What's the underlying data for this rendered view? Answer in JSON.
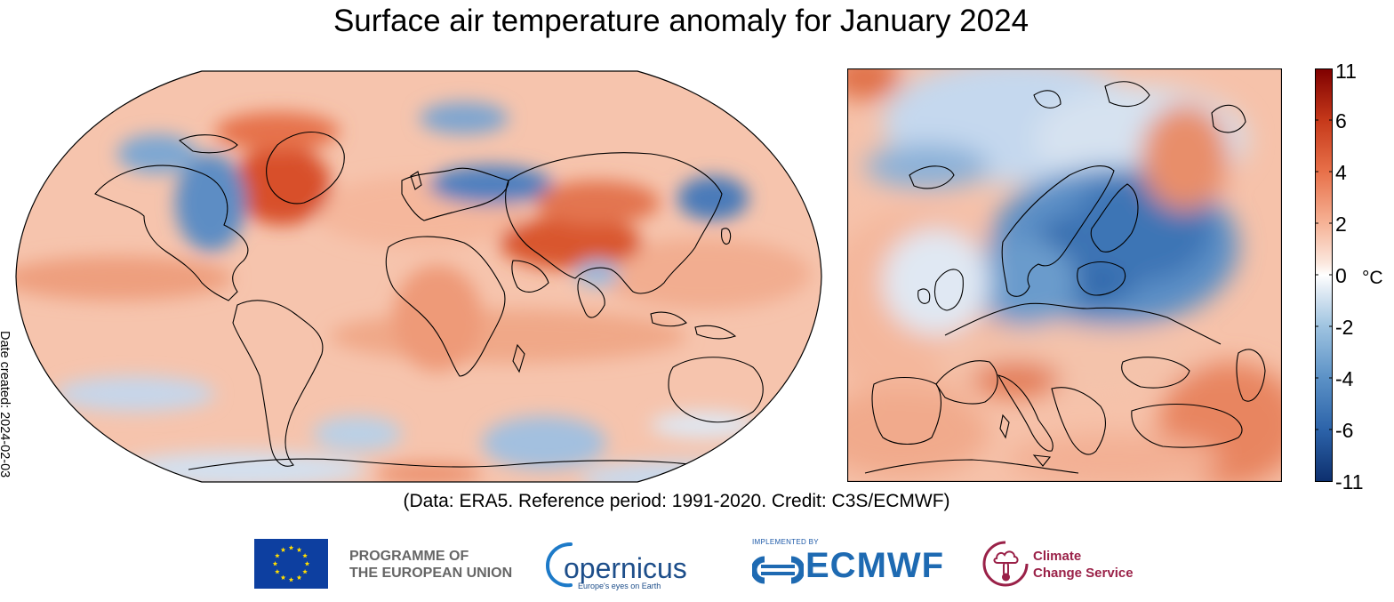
{
  "title": "Surface air temperature anomaly for January 2024",
  "date_created": "Date created: 2024-02-03",
  "credit": "(Data: ERA5.  Reference period: 1991-2020.  Credit: C3S/ECMWF)",
  "colorbar": {
    "ticks": [
      "11",
      "6",
      "4",
      "2",
      "0",
      "-2",
      "-4",
      "-6",
      "-11"
    ],
    "unit": "°C",
    "colors": [
      "#7f0000",
      "#c6391a",
      "#e8714a",
      "#f6b397",
      "#fbe2d6",
      "#ffffff",
      "#dce8f3",
      "#9ec3e0",
      "#5b91c6",
      "#2c63a9",
      "#0d2f6e"
    ]
  },
  "maps": {
    "global": "Global map (Robinson projection)",
    "europe": "Europe regional map"
  },
  "logos": {
    "eu_line1": "PROGRAMME OF",
    "eu_line2": "THE EUROPEAN UNION",
    "copernicus": "opernicus",
    "copernicus_tagline": "Europe's eyes on Earth",
    "implemented_by": "IMPLEMENTED BY",
    "ecmwf": "ECMWF",
    "c3s_line1": "Climate",
    "c3s_line2": "Change Service"
  },
  "colors": {
    "warm": "#f2a488",
    "warm_strong": "#d9532c",
    "cold": "#a9c6e4",
    "cold_strong": "#3a6eb5",
    "ecmwf_blue": "#1e6ab2",
    "c3s_red": "#9a2148",
    "eu_blue": "#0d3fa0",
    "eu_yellow": "#ffdd00"
  }
}
